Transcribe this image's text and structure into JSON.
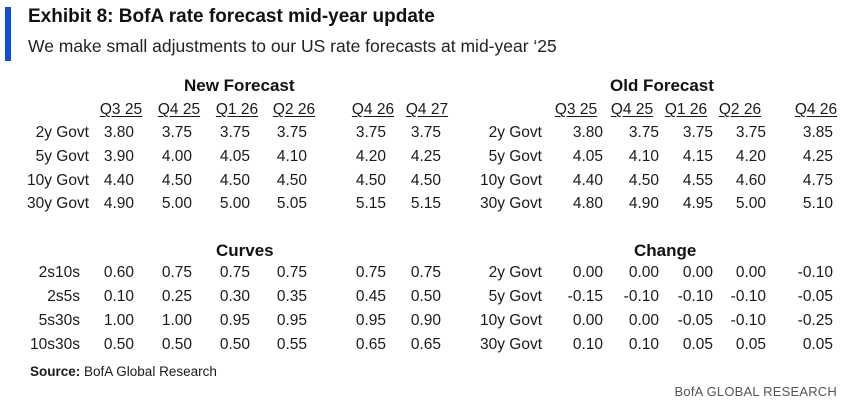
{
  "header": {
    "title": "Exhibit 8: BofA rate forecast mid-year update",
    "subtitle": "We make small adjustments to our US rate forecasts at mid-year ‘25"
  },
  "new_forecast": {
    "title": "New Forecast",
    "columns": [
      "Q3 25",
      "Q4 25",
      "Q1 26",
      "Q2 26",
      "Q4 26",
      "Q4 27"
    ],
    "rows": [
      {
        "label": "2y Govt",
        "values": [
          "3.80",
          "3.75",
          "3.75",
          "3.75",
          "3.75",
          "3.75"
        ]
      },
      {
        "label": "5y Govt",
        "values": [
          "3.90",
          "4.00",
          "4.05",
          "4.10",
          "4.20",
          "4.25"
        ]
      },
      {
        "label": "10y Govt",
        "values": [
          "4.40",
          "4.50",
          "4.50",
          "4.50",
          "4.50",
          "4.50"
        ]
      },
      {
        "label": "30y Govt",
        "values": [
          "4.90",
          "5.00",
          "5.00",
          "5.05",
          "5.15",
          "5.15"
        ]
      }
    ]
  },
  "old_forecast": {
    "title": "Old Forecast",
    "columns": [
      "Q3 25",
      "Q4 25",
      "Q1 26",
      "Q2 26",
      "Q4 26"
    ],
    "rows": [
      {
        "label": "2y Govt",
        "values": [
          "3.80",
          "3.75",
          "3.75",
          "3.75",
          "3.85"
        ]
      },
      {
        "label": "5y Govt",
        "values": [
          "4.05",
          "4.10",
          "4.15",
          "4.20",
          "4.25"
        ]
      },
      {
        "label": "10y Govt",
        "values": [
          "4.40",
          "4.50",
          "4.55",
          "4.60",
          "4.75"
        ]
      },
      {
        "label": "30y Govt",
        "values": [
          "4.80",
          "4.90",
          "4.95",
          "5.00",
          "5.10"
        ]
      }
    ]
  },
  "curves": {
    "title": "Curves",
    "rows": [
      {
        "label": "2s10s",
        "values": [
          "0.60",
          "0.75",
          "0.75",
          "0.75",
          "0.75",
          "0.75"
        ]
      },
      {
        "label": "2s5s",
        "values": [
          "0.10",
          "0.25",
          "0.30",
          "0.35",
          "0.45",
          "0.50"
        ]
      },
      {
        "label": "5s30s",
        "values": [
          "1.00",
          "1.00",
          "0.95",
          "0.95",
          "0.95",
          "0.90"
        ]
      },
      {
        "label": "10s30s",
        "values": [
          "0.50",
          "0.50",
          "0.50",
          "0.55",
          "0.65",
          "0.65"
        ]
      }
    ]
  },
  "change": {
    "title": "Change",
    "rows": [
      {
        "label": "2y Govt",
        "values": [
          "0.00",
          "0.00",
          "0.00",
          "0.00",
          "-0.10"
        ]
      },
      {
        "label": "5y Govt",
        "values": [
          "-0.15",
          "-0.10",
          "-0.10",
          "-0.10",
          "-0.05"
        ]
      },
      {
        "label": "10y Govt",
        "values": [
          "0.00",
          "0.00",
          "-0.05",
          "-0.10",
          "-0.25"
        ]
      },
      {
        "label": "30y Govt",
        "values": [
          "0.10",
          "0.10",
          "0.05",
          "0.05",
          "0.05"
        ]
      }
    ]
  },
  "footer": {
    "source_label": "Source:",
    "source_text": " BofA Global Research",
    "brand": "BofA GLOBAL RESEARCH"
  },
  "colors": {
    "accent": "#0b4fd8"
  }
}
